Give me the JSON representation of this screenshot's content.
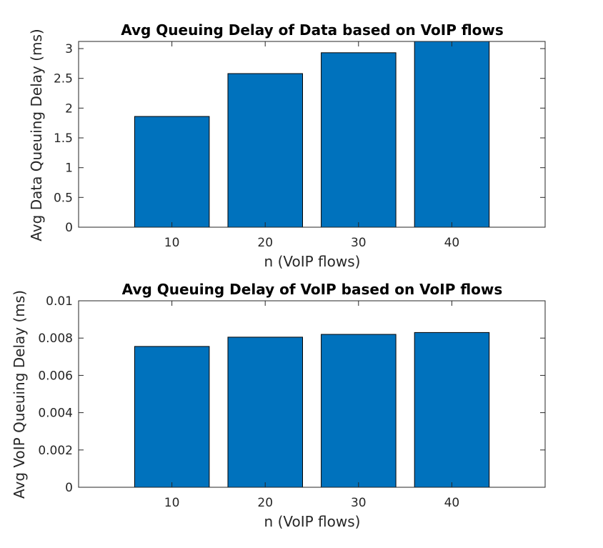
{
  "chart_data": [
    {
      "type": "bar",
      "title": "Avg Queuing Delay of Data based on VoIP flows",
      "xlabel": "n (VoIP flows)",
      "ylabel": "Avg Data Queuing Delay (ms)",
      "categories": [
        "10",
        "20",
        "30",
        "40"
      ],
      "x_values": [
        10,
        20,
        30,
        40
      ],
      "values": [
        1.86,
        2.58,
        2.93,
        3.12
      ],
      "xlim": [
        0,
        50
      ],
      "ylim": [
        0,
        3.12
      ],
      "yticks": [
        "0",
        "0.5",
        "1",
        "1.5",
        "2",
        "2.5",
        "3"
      ],
      "ytick_values": [
        0,
        0.5,
        1,
        1.5,
        2,
        2.5,
        3
      ],
      "grid": false,
      "bar_color": "#0072BD"
    },
    {
      "type": "bar",
      "title": "Avg Queuing Delay of VoIP based on VoIP flows",
      "xlabel": "n (VoIP flows)",
      "ylabel": "Avg VoIP Queuing Delay (ms)",
      "categories": [
        "10",
        "20",
        "30",
        "40"
      ],
      "x_values": [
        10,
        20,
        30,
        40
      ],
      "values": [
        0.00755,
        0.00805,
        0.0082,
        0.0083
      ],
      "xlim": [
        0,
        50
      ],
      "ylim": [
        0,
        0.01
      ],
      "yticks": [
        "0",
        "0.002",
        "0.004",
        "0.006",
        "0.008",
        "0.01"
      ],
      "ytick_values": [
        0,
        0.002,
        0.004,
        0.006,
        0.008,
        0.01
      ],
      "grid": false,
      "bar_color": "#0072BD"
    }
  ]
}
